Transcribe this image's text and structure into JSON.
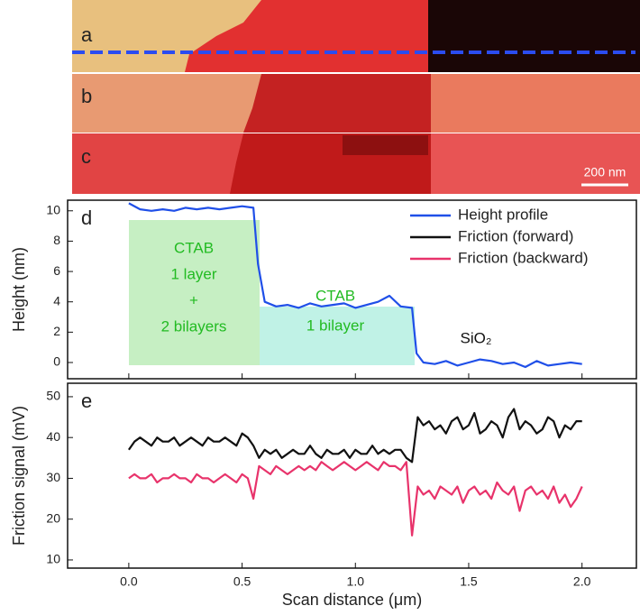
{
  "image_labels": [
    "a",
    "b",
    "c"
  ],
  "scale_bar": "200 nm",
  "chart_data": [
    {
      "type": "line",
      "panel_label": "d",
      "ylabel": "Height (nm)",
      "x": [
        0,
        0.05,
        0.1,
        0.15,
        0.2,
        0.25,
        0.3,
        0.35,
        0.4,
        0.45,
        0.5,
        0.55,
        0.57,
        0.6,
        0.65,
        0.7,
        0.75,
        0.8,
        0.85,
        0.9,
        0.95,
        1.0,
        1.05,
        1.1,
        1.15,
        1.2,
        1.25,
        1.27,
        1.3,
        1.35,
        1.4,
        1.45,
        1.5,
        1.55,
        1.6,
        1.65,
        1.7,
        1.75,
        1.8,
        1.85,
        1.9,
        1.95,
        2.0
      ],
      "series": [
        {
          "name": "Height profile",
          "color": "#1f4fe8",
          "values": [
            10.5,
            10.1,
            10.0,
            10.1,
            10.0,
            10.2,
            10.1,
            10.2,
            10.1,
            10.2,
            10.3,
            10.2,
            6.5,
            4.0,
            3.7,
            3.8,
            3.6,
            3.9,
            3.7,
            3.8,
            3.9,
            3.6,
            3.8,
            4.0,
            4.4,
            3.7,
            3.6,
            0.6,
            0.0,
            -0.1,
            0.1,
            -0.2,
            0.0,
            0.2,
            0.1,
            -0.1,
            0.0,
            -0.3,
            0.1,
            -0.2,
            -0.1,
            0.0,
            -0.1
          ]
        }
      ],
      "xlim": [
        -0.27,
        2.24
      ],
      "ylim": [
        -1.07,
        10.7
      ],
      "yticks": [
        0,
        2,
        4,
        6,
        8,
        10
      ],
      "legend": "upper right",
      "annotations": [
        {
          "text": "CTAB",
          "color": "#22bb22"
        },
        {
          "text": "1 layer",
          "color": "#22bb22"
        },
        {
          "text": "+",
          "color": "#22bb22"
        },
        {
          "text": "2 bilayers",
          "color": "#22bb22"
        },
        {
          "text": "CTAB",
          "color": "#22bb22"
        },
        {
          "text": "1 bilayer",
          "color": "#22bb22"
        },
        {
          "text": "SiO₂",
          "color": "#111111"
        }
      ]
    },
    {
      "type": "line",
      "panel_label": "e",
      "ylabel": "Friction signal (mV)",
      "xlabel": "Scan distance (μm)",
      "x": [
        0,
        0.025,
        0.05,
        0.075,
        0.1,
        0.125,
        0.15,
        0.175,
        0.2,
        0.225,
        0.25,
        0.275,
        0.3,
        0.325,
        0.35,
        0.375,
        0.4,
        0.425,
        0.45,
        0.475,
        0.5,
        0.525,
        0.55,
        0.575,
        0.6,
        0.625,
        0.65,
        0.675,
        0.7,
        0.725,
        0.75,
        0.775,
        0.8,
        0.825,
        0.85,
        0.875,
        0.9,
        0.925,
        0.95,
        0.975,
        1.0,
        1.025,
        1.05,
        1.075,
        1.1,
        1.125,
        1.15,
        1.175,
        1.2,
        1.225,
        1.25,
        1.275,
        1.3,
        1.325,
        1.35,
        1.375,
        1.4,
        1.425,
        1.45,
        1.475,
        1.5,
        1.525,
        1.55,
        1.575,
        1.6,
        1.625,
        1.65,
        1.675,
        1.7,
        1.725,
        1.75,
        1.775,
        1.8,
        1.825,
        1.85,
        1.875,
        1.9,
        1.925,
        1.95,
        1.975,
        2.0
      ],
      "series": [
        {
          "name": "Friction (forward)",
          "color": "#111111",
          "values": [
            37,
            39,
            40,
            39,
            38,
            40,
            39,
            39,
            40,
            38,
            39,
            40,
            39,
            38,
            40,
            39,
            39,
            40,
            39,
            38,
            41,
            40,
            38,
            35,
            37,
            36,
            37,
            35,
            36,
            37,
            36,
            36,
            38,
            36,
            35,
            37,
            36,
            36,
            37,
            35,
            37,
            36,
            36,
            38,
            36,
            37,
            36,
            37,
            37,
            35,
            34,
            45,
            43,
            44,
            42,
            43,
            41,
            44,
            45,
            42,
            43,
            46,
            41,
            42,
            44,
            43,
            40,
            45,
            47,
            42,
            44,
            43,
            41,
            42,
            45,
            44,
            40,
            43,
            42,
            44,
            44
          ]
        },
        {
          "name": "Friction (backward)",
          "color": "#e8336b",
          "values": [
            30,
            31,
            30,
            30,
            31,
            29,
            30,
            30,
            31,
            30,
            30,
            29,
            31,
            30,
            30,
            29,
            30,
            31,
            30,
            29,
            31,
            30,
            25,
            33,
            32,
            31,
            33,
            32,
            31,
            32,
            33,
            32,
            33,
            32,
            34,
            33,
            32,
            33,
            34,
            33,
            32,
            33,
            34,
            33,
            32,
            34,
            33,
            33,
            32,
            34,
            16,
            28,
            26,
            27,
            25,
            28,
            27,
            26,
            28,
            24,
            27,
            28,
            26,
            27,
            25,
            29,
            27,
            26,
            28,
            22,
            27,
            28,
            26,
            27,
            25,
            28,
            24,
            26,
            23,
            25,
            28
          ]
        }
      ],
      "xlim": [
        -0.27,
        2.24
      ],
      "ylim": [
        8,
        53.3
      ],
      "yticks": [
        10,
        20,
        30,
        40,
        50
      ],
      "xticks": [
        {
          "value": 0,
          "label": "0.0"
        },
        0.5,
        {
          "value": 1,
          "label": "1.0"
        },
        1.5,
        {
          "value": 2,
          "label": "2.0"
        }
      ]
    }
  ]
}
